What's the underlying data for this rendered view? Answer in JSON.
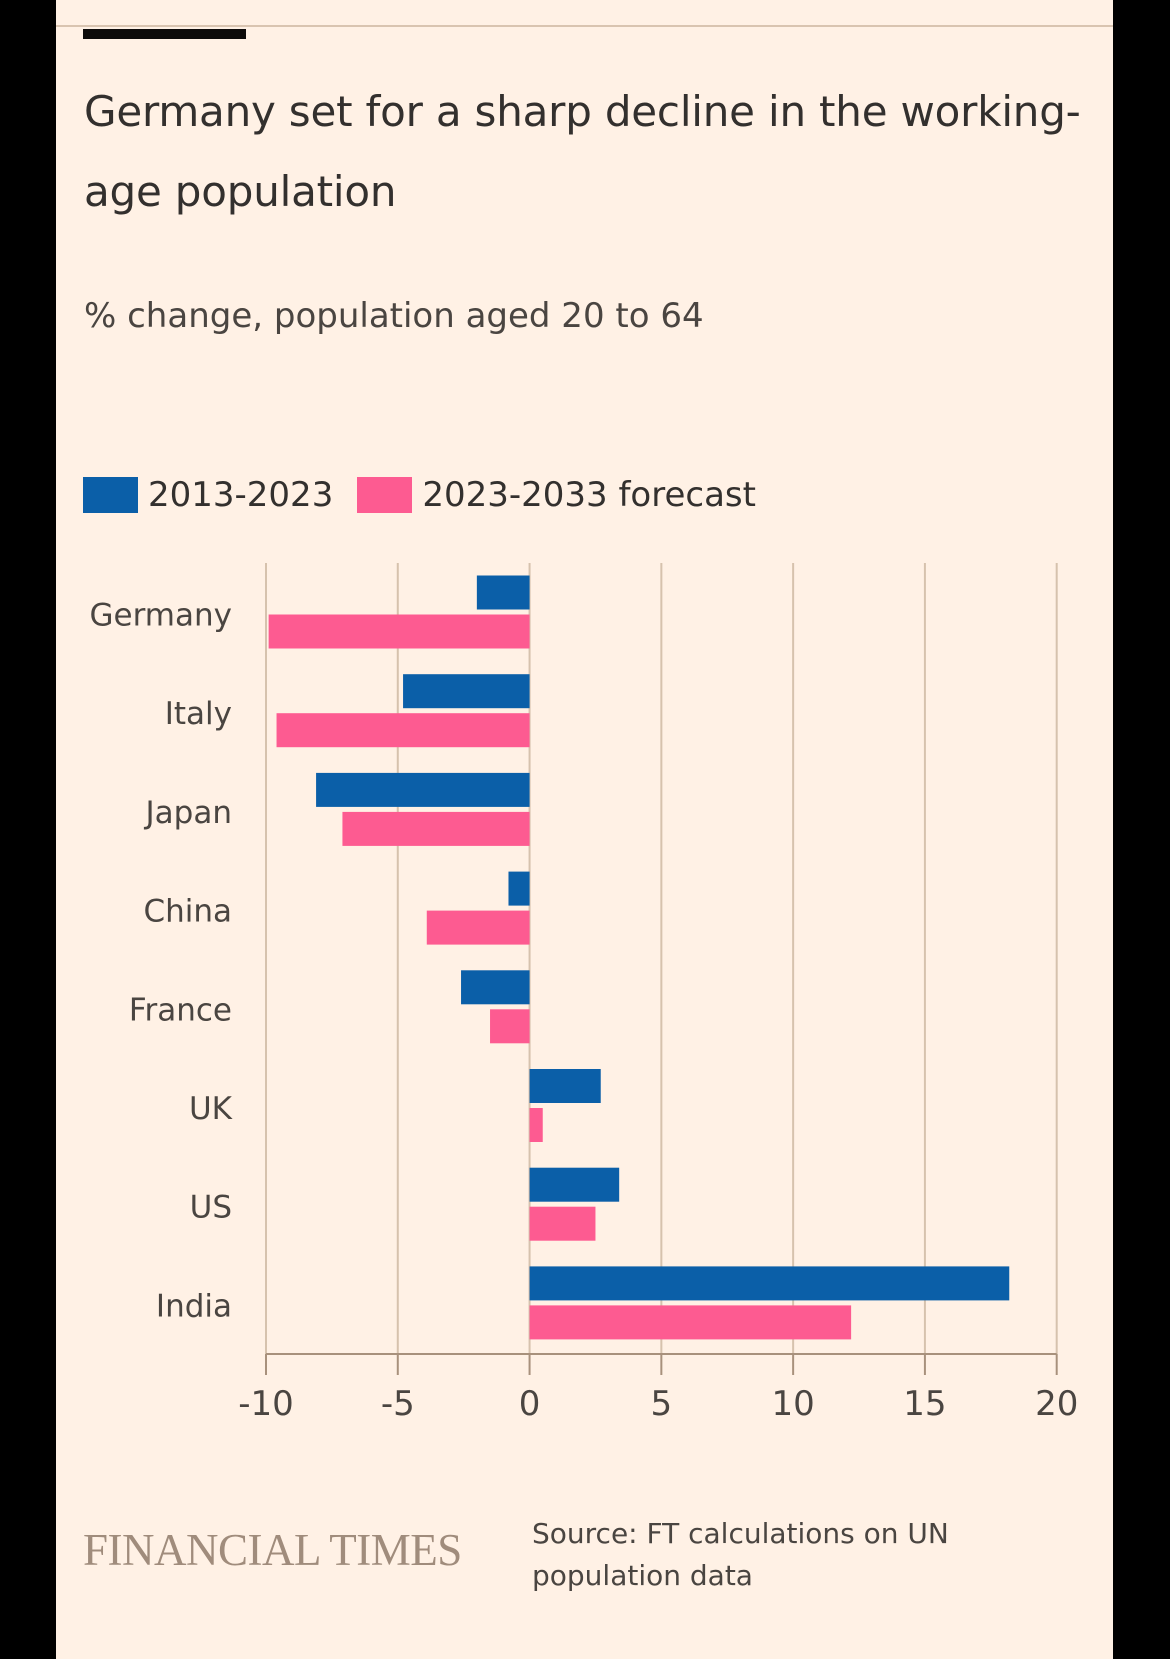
{
  "header": {
    "title": "Germany set for a sharp decline in the working-age population",
    "subtitle": "% change, population aged 20 to 64"
  },
  "legend": [
    {
      "label": "2013-2023",
      "color": "#0b5fa8"
    },
    {
      "label": "2023-2033 forecast",
      "color": "#fd5b91"
    }
  ],
  "footer": {
    "brand": "FINANCIAL TIMES",
    "source": "Source: FT calculations on UN population data"
  },
  "colors": {
    "background": "#fff1e5",
    "grid": "#d6c2ad",
    "axis": "#a8917c",
    "text": "#4a4541"
  },
  "chart_data": {
    "type": "bar",
    "orientation": "horizontal",
    "title": "Germany set for a sharp decline in the working-age population",
    "subtitle": "% change, population aged 20 to 64",
    "xlabel": "",
    "ylabel": "",
    "categories": [
      "Germany",
      "Italy",
      "Japan",
      "China",
      "France",
      "UK",
      "US",
      "India"
    ],
    "series": [
      {
        "name": "2013-2023",
        "color": "#0b5fa8",
        "values": [
          -2.0,
          -4.8,
          -8.1,
          -0.8,
          -2.6,
          2.7,
          3.4,
          18.2
        ]
      },
      {
        "name": "2023-2033 forecast",
        "color": "#fd5b91",
        "values": [
          -9.9,
          -9.6,
          -7.1,
          -3.9,
          -1.5,
          0.5,
          2.5,
          12.2
        ]
      }
    ],
    "xlim": [
      -10,
      20
    ],
    "xticks": [
      -10,
      -5,
      0,
      5,
      10,
      15,
      20
    ],
    "xtick_labels": [
      "-10",
      "-5",
      "0",
      "5",
      "10",
      "15",
      "20"
    ],
    "grid": true,
    "legend_position": "top-left",
    "source": "Source: FT calculations on UN population data"
  }
}
